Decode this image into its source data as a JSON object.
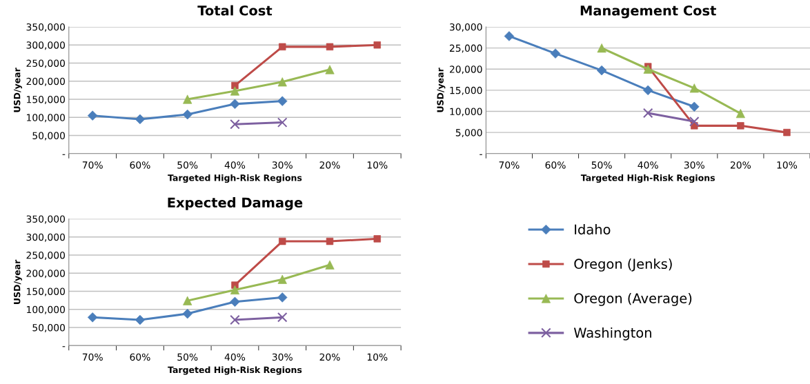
{
  "chart_data": [
    {
      "type": "line",
      "title": "Total Cost",
      "xlabel": "Targeted High-Risk Regions",
      "ylabel": "USD/year",
      "categories": [
        "70%",
        "60%",
        "50%",
        "40%",
        "30%",
        "20%",
        "10%"
      ],
      "ylim": [
        0,
        350000
      ],
      "yticks": [
        {
          "value": 0,
          "label": "-"
        },
        {
          "value": 50000,
          "label": "50,000"
        },
        {
          "value": 100000,
          "label": "100,000"
        },
        {
          "value": 150000,
          "label": "150,000"
        },
        {
          "value": 200000,
          "label": "200,000"
        },
        {
          "value": 250000,
          "label": "250,000"
        },
        {
          "value": 300000,
          "label": "300,000"
        },
        {
          "value": 350000,
          "label": "350,000"
        }
      ],
      "grid": "y",
      "series": [
        {
          "color": "#4a7ebb",
          "marker": "diamond",
          "values": [
            105000,
            95000,
            108000,
            137000,
            145000,
            null,
            null
          ]
        },
        {
          "color": "#be4b48",
          "marker": "square",
          "values": [
            null,
            null,
            null,
            188000,
            295000,
            295000,
            300000
          ]
        },
        {
          "color": "#98b954",
          "marker": "triangle",
          "values": [
            null,
            null,
            150000,
            173000,
            198000,
            232000,
            null
          ]
        },
        {
          "color": "#7d60a0",
          "marker": "cross",
          "values": [
            null,
            null,
            null,
            81000,
            86000,
            null,
            null
          ]
        }
      ]
    },
    {
      "type": "line",
      "title": "Management Cost",
      "xlabel": "Targeted High-Risk Regions",
      "ylabel": "USD/year",
      "categories": [
        "70%",
        "60%",
        "50%",
        "40%",
        "30%",
        "20%",
        "10%"
      ],
      "ylim": [
        0,
        30000
      ],
      "yticks": [
        {
          "value": 0,
          "label": "-"
        },
        {
          "value": 5000,
          "label": "5,000"
        },
        {
          "value": 10000,
          "label": "10,000"
        },
        {
          "value": 15000,
          "label": "15,000"
        },
        {
          "value": 20000,
          "label": "20,000"
        },
        {
          "value": 25000,
          "label": "25,000"
        },
        {
          "value": 30000,
          "label": "30,000"
        }
      ],
      "grid": "y",
      "series": [
        {
          "color": "#4a7ebb",
          "marker": "diamond",
          "values": [
            27800,
            23700,
            19700,
            15000,
            11100,
            null,
            null
          ]
        },
        {
          "color": "#be4b48",
          "marker": "square",
          "values": [
            null,
            null,
            null,
            20600,
            6600,
            6600,
            5000
          ]
        },
        {
          "color": "#98b954",
          "marker": "triangle",
          "values": [
            null,
            null,
            25000,
            20000,
            15500,
            9500,
            null
          ]
        },
        {
          "color": "#7d60a0",
          "marker": "cross",
          "values": [
            null,
            null,
            null,
            9600,
            7600,
            null,
            null
          ]
        }
      ]
    },
    {
      "type": "line",
      "title": "Expected Damage",
      "xlabel": "Targeted High-Risk Regions",
      "ylabel": "USD/year",
      "categories": [
        "70%",
        "60%",
        "50%",
        "40%",
        "30%",
        "20%",
        "10%"
      ],
      "ylim": [
        0,
        350000
      ],
      "yticks": [
        {
          "value": 0,
          "label": "-"
        },
        {
          "value": 50000,
          "label": "50,000"
        },
        {
          "value": 100000,
          "label": "100,000"
        },
        {
          "value": 150000,
          "label": "150,000"
        },
        {
          "value": 200000,
          "label": "200,000"
        },
        {
          "value": 250000,
          "label": "250,000"
        },
        {
          "value": 300000,
          "label": "300,000"
        },
        {
          "value": 350000,
          "label": "350,000"
        }
      ],
      "grid": "y",
      "legend": "right",
      "series": [
        {
          "name": "Idaho",
          "color": "#4a7ebb",
          "marker": "diamond",
          "values": [
            78000,
            71000,
            88000,
            121000,
            133000,
            null,
            null
          ]
        },
        {
          "name": "Oregon (Jenks)",
          "color": "#be4b48",
          "marker": "square",
          "values": [
            null,
            null,
            null,
            167000,
            288000,
            288000,
            295000
          ]
        },
        {
          "name": "Oregon (Average)",
          "color": "#98b954",
          "marker": "triangle",
          "values": [
            null,
            null,
            124000,
            154000,
            183000,
            223000,
            null
          ]
        },
        {
          "name": "Washington",
          "color": "#7d60a0",
          "marker": "cross",
          "values": [
            null,
            null,
            null,
            71000,
            78000,
            null,
            null
          ]
        }
      ]
    }
  ]
}
